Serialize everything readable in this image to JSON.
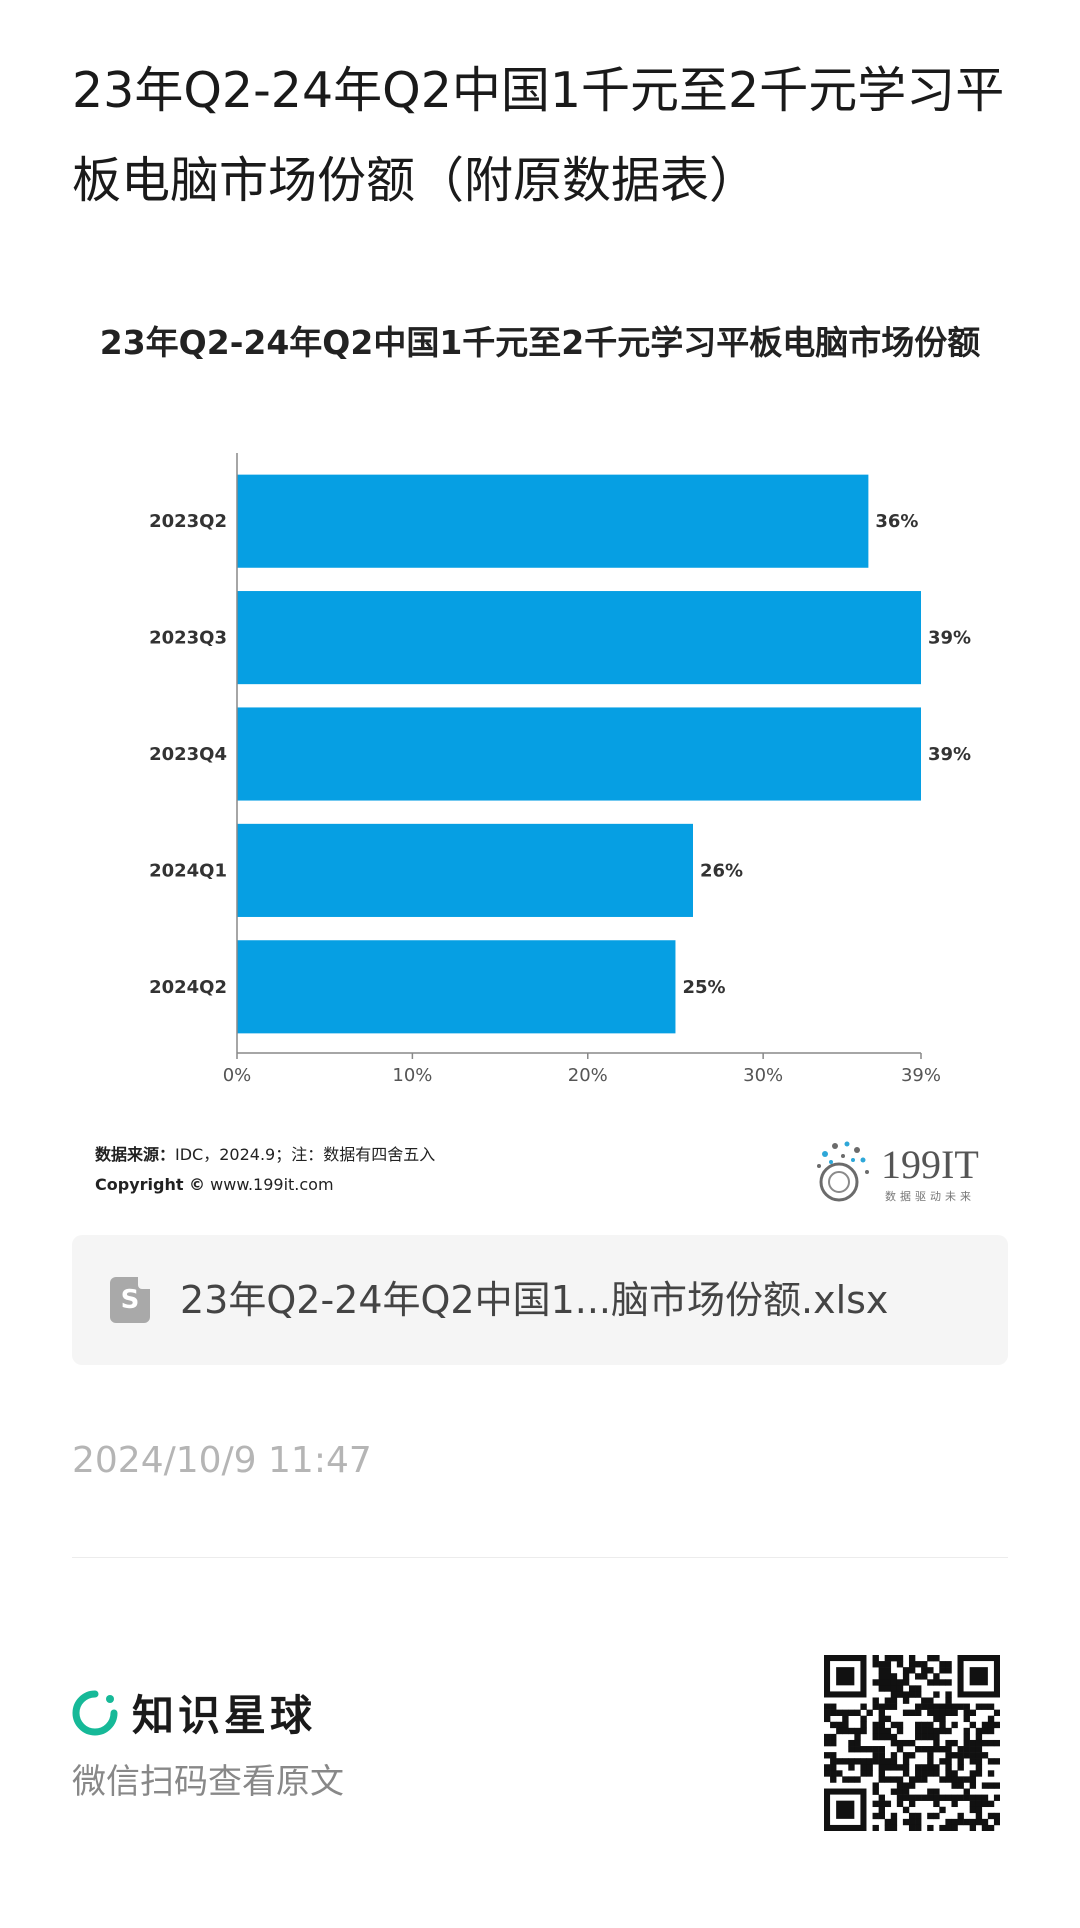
{
  "page": {
    "title": "23年Q2-24年Q2中国1千元至2千元学习平板电脑市场份额（附原数据表）"
  },
  "chart_data": {
    "type": "bar",
    "orientation": "horizontal",
    "title": "23年Q2-24年Q2中国1千元至2千元学习平板电脑市场份额",
    "categories": [
      "2023Q2",
      "2023Q3",
      "2023Q4",
      "2024Q1",
      "2024Q2"
    ],
    "values": [
      36,
      39,
      39,
      26,
      25
    ],
    "value_labels": [
      "36%",
      "39%",
      "39%",
      "26%",
      "25%"
    ],
    "xlim": [
      0,
      39
    ],
    "x_ticks": [
      "0%",
      "10%",
      "20%",
      "30%",
      "39%"
    ],
    "x_tick_values": [
      0,
      10,
      20,
      30,
      39
    ],
    "bar_color": "#069fe3",
    "grid": false
  },
  "source": {
    "label": "数据来源：",
    "text": "IDC，2024.9；注：数据有四舍五入",
    "copyright_label": "Copyright ©",
    "copyright_site": "www.199it.com"
  },
  "brand": {
    "name": "199IT",
    "tagline": "数据驱动未来"
  },
  "attachment": {
    "icon": "spreadsheet-file-icon",
    "icon_letter": "S",
    "filename": "23年Q2-24年Q2中国1...脑市场份额.xlsx"
  },
  "timestamp": "2024/10/9 11:47",
  "footer": {
    "planet_name": "知识星球",
    "scan_text": "微信扫码查看原文",
    "accent_color": "#16b998"
  }
}
